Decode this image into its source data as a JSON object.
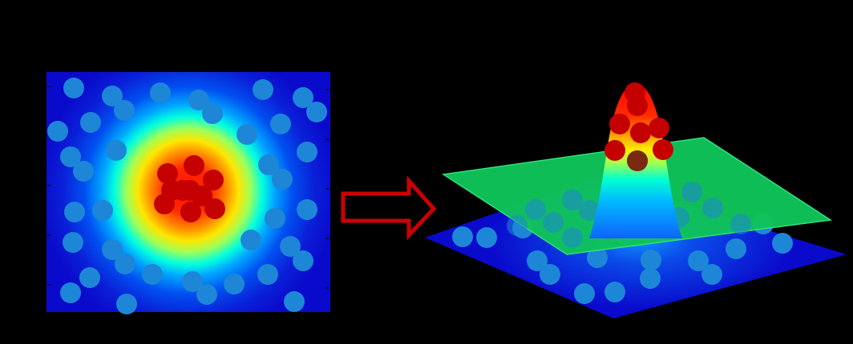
{
  "colors": {
    "background": "#000000",
    "cold": "#0a0acc",
    "hot": "#ff0000",
    "point_blue": "#1e86d6",
    "point_red": "#c40000",
    "arrow_stroke": "#cc0000",
    "arrow_fill": "#000000",
    "hyperplane": "#10c35a"
  },
  "icons": {
    "transform_arrow": "right-arrow-icon"
  },
  "panels": [
    {
      "name": "input-2d-feature-map",
      "style": "radial-heatmap",
      "outer_points": 46,
      "inner_points": 10
    },
    {
      "name": "lifted-3d-feature-space",
      "style": "surface-with-separating-plane",
      "outer_points": 34,
      "inner_points": 9
    }
  ]
}
